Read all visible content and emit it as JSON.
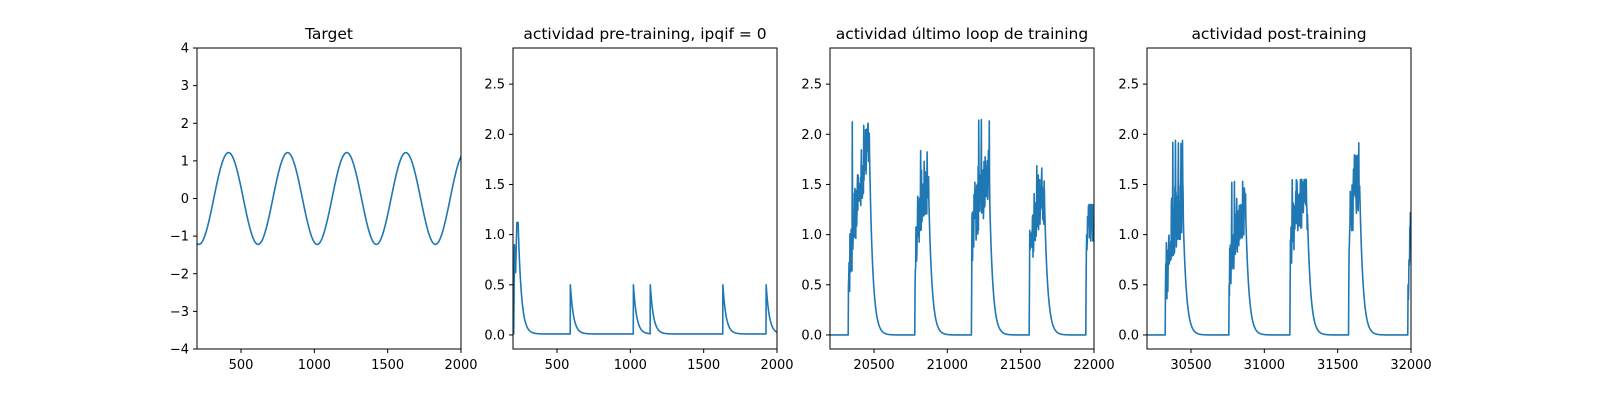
{
  "figure": {
    "background": "#ffffff",
    "line_color": "#1f77b4"
  },
  "chart_data": [
    {
      "type": "line",
      "title": "Target",
      "xlabel": "",
      "ylabel": "",
      "xlim": [
        200,
        2000
      ],
      "ylim": [
        -4,
        4
      ],
      "xticks": [
        500,
        1000,
        1500,
        2000
      ],
      "yticks": [
        -4,
        -3,
        -2,
        -1,
        0,
        1,
        2,
        3,
        4
      ],
      "ytick_labels": [
        "−4",
        "−3",
        "−2",
        "−1",
        "0",
        "1",
        "2",
        "3",
        "4"
      ],
      "series": [
        {
          "kind": "sine",
          "amplitude": 1.22,
          "period": 403,
          "peak_x": [
            415,
            818,
            1221,
            1624
          ],
          "trough_x": [
            214,
            617,
            1020,
            1423,
            1826
          ],
          "x_range": [
            200,
            2000
          ]
        }
      ]
    },
    {
      "type": "line",
      "title": "actividad pre-training, ipqif = 0",
      "xlabel": "",
      "ylabel": "",
      "xlim": [
        200,
        2000
      ],
      "ylim": [
        -0.14,
        2.86
      ],
      "xticks": [
        500,
        1000,
        1500,
        2000
      ],
      "yticks": [
        0.0,
        0.5,
        1.0,
        1.5,
        2.0,
        2.5
      ],
      "ytick_labels": [
        "0.0",
        "0.5",
        "1.0",
        "1.5",
        "2.0",
        "2.5"
      ],
      "series": [
        {
          "kind": "spikes_with_decay",
          "baseline": 0.01,
          "decay_tau": 22,
          "x_range": [
            200,
            2000
          ],
          "bursts": [
            {
              "start": 205,
              "end": 235,
              "peaks": [
                [
                  210,
                  0.9
                ],
                [
                  218,
                  0.62
                ],
                [
                  226,
                  1.12
                ]
              ]
            },
            {
              "start": 590,
              "end": 591,
              "peaks": [
                [
                  590,
                  0.5
                ]
              ]
            },
            {
              "start": 1020,
              "end": 1021,
              "peaks": [
                [
                  1020,
                  0.5
                ]
              ]
            },
            {
              "start": 1135,
              "end": 1136,
              "peaks": [
                [
                  1135,
                  0.5
                ]
              ]
            },
            {
              "start": 1630,
              "end": 1631,
              "peaks": [
                [
                  1630,
                  0.5
                ]
              ]
            },
            {
              "start": 1925,
              "end": 1926,
              "peaks": [
                [
                  1925,
                  0.5
                ]
              ]
            }
          ]
        }
      ]
    },
    {
      "type": "line",
      "title": "actividad último loop de training",
      "xlabel": "",
      "ylabel": "",
      "xlim": [
        20200,
        22000
      ],
      "ylim": [
        -0.14,
        2.86
      ],
      "xticks": [
        20500,
        21000,
        21500,
        22000
      ],
      "yticks": [
        0.0,
        0.5,
        1.0,
        1.5,
        2.0,
        2.5
      ],
      "ytick_labels": [
        "0.0",
        "0.5",
        "1.0",
        "1.5",
        "2.0",
        "2.5"
      ],
      "series": [
        {
          "kind": "noisy_bursts",
          "baseline": 0.0,
          "decay_tau": 22,
          "x_range": [
            20200,
            22000
          ],
          "bursts": [
            {
              "start": 20325,
              "end": 20470,
              "env_start": 0.5,
              "env_end": 1.9,
              "noise": 0.3,
              "max": 2.13
            },
            {
              "start": 20780,
              "end": 20875,
              "env_start": 0.8,
              "env_end": 1.45,
              "noise": 0.3,
              "max": 1.85
            },
            {
              "start": 21165,
              "end": 21290,
              "env_start": 0.9,
              "env_end": 1.5,
              "noise": 0.35,
              "max": 2.18
            },
            {
              "start": 21560,
              "end": 21665,
              "env_start": 0.7,
              "env_end": 1.35,
              "noise": 0.3,
              "max": 1.7
            },
            {
              "start": 21945,
              "end": 22000,
              "env_start": 0.8,
              "env_end": 1.05,
              "noise": 0.25,
              "max": 1.3
            }
          ]
        }
      ]
    },
    {
      "type": "line",
      "title": "actividad post-training",
      "xlabel": "",
      "ylabel": "",
      "xlim": [
        30200,
        32000
      ],
      "ylim": [
        -0.14,
        2.86
      ],
      "xticks": [
        30500,
        31000,
        31500,
        32000
      ],
      "yticks": [
        0.0,
        0.5,
        1.0,
        1.5,
        2.0,
        2.5
      ],
      "ytick_labels": [
        "0.0",
        "0.5",
        "1.0",
        "1.5",
        "2.0",
        "2.5"
      ],
      "series": [
        {
          "kind": "noisy_bursts",
          "baseline": 0.0,
          "decay_tau": 22,
          "x_range": [
            30200,
            32000
          ],
          "bursts": [
            {
              "start": 30325,
              "end": 30450,
              "env_start": 0.5,
              "env_end": 1.3,
              "noise": 0.35,
              "max": 1.95
            },
            {
              "start": 30760,
              "end": 30875,
              "env_start": 0.5,
              "env_end": 1.25,
              "noise": 0.3,
              "max": 1.55
            },
            {
              "start": 31175,
              "end": 31295,
              "env_start": 0.8,
              "env_end": 1.3,
              "noise": 0.3,
              "max": 1.55
            },
            {
              "start": 31575,
              "end": 31650,
              "env_start": 0.8,
              "env_end": 1.6,
              "noise": 0.35,
              "max": 2.13
            },
            {
              "start": 31980,
              "end": 32000,
              "env_start": 0.4,
              "env_end": 1.0,
              "noise": 0.3,
              "max": 1.22
            }
          ]
        }
      ]
    }
  ]
}
